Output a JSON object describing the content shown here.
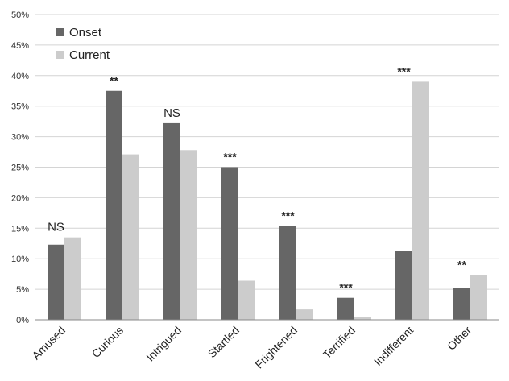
{
  "chart_data": {
    "type": "bar",
    "categories": [
      "Amused",
      "Curious",
      "Intrigued",
      "Startled",
      "Frightened",
      "Terrified",
      "Indifferent",
      "Other"
    ],
    "series": [
      {
        "name": "Onset",
        "values": [
          12.3,
          37.5,
          32.2,
          25.0,
          15.4,
          3.6,
          11.3,
          5.2
        ],
        "color": "#666666"
      },
      {
        "name": "Current",
        "values": [
          13.5,
          27.1,
          27.8,
          6.4,
          1.7,
          0.4,
          39.0,
          7.3
        ],
        "color": "#cccccc"
      }
    ],
    "significance": [
      "NS",
      "**",
      "NS",
      "***",
      "***",
      "***",
      "***",
      "**"
    ],
    "ylim": [
      0,
      50
    ],
    "y_ticks": [
      "0%",
      "5%",
      "10%",
      "15%",
      "20%",
      "25%",
      "30%",
      "35%",
      "40%",
      "45%",
      "50%"
    ],
    "y_tick_values": [
      0,
      5,
      10,
      15,
      20,
      25,
      30,
      35,
      40,
      45,
      50
    ],
    "grid": "horizontal",
    "legend_position": "top-left",
    "title": "",
    "xlabel": "",
    "ylabel": ""
  }
}
